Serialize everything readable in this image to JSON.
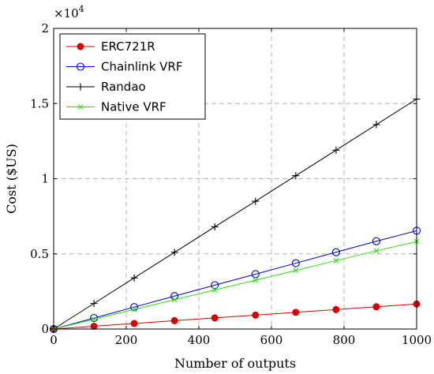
{
  "chart_data": {
    "type": "line",
    "xlabel": "Number of outputs",
    "ylabel": "Cost ($US)",
    "y_multiplier_label": "×10",
    "y_multiplier_exp": "4",
    "xlim": [
      0,
      1000
    ],
    "ylim": [
      0,
      20000
    ],
    "x_ticks": [
      0,
      200,
      400,
      600,
      800,
      1000
    ],
    "x_tick_labels": [
      "0",
      "200",
      "400",
      "600",
      "800",
      "1000"
    ],
    "y_ticks": [
      0,
      5000,
      10000,
      15000,
      20000
    ],
    "y_tick_labels": [
      "0",
      "0.5",
      "1",
      "1.5",
      "2"
    ],
    "grid": true,
    "legend_position": "top-left",
    "x": [
      0,
      111,
      222,
      333,
      444,
      556,
      667,
      778,
      889,
      1000
    ],
    "series": [
      {
        "name": "ERC721R",
        "color": "#d40000",
        "marker": "filled-circle",
        "values": [
          0,
          185,
          370,
          555,
          740,
          925,
          1110,
          1295,
          1480,
          1665
        ]
      },
      {
        "name": "Chainlink VRF",
        "color": "#0000cc",
        "marker": "open-circle",
        "values": [
          0,
          730,
          1460,
          2190,
          2920,
          3650,
          4380,
          5110,
          5840,
          6540
        ]
      },
      {
        "name": "Randao",
        "color": "#000000",
        "marker": "plus",
        "values": [
          0,
          1700,
          3400,
          5100,
          6800,
          8500,
          10200,
          11900,
          13600,
          15300
        ]
      },
      {
        "name": "Native VRF",
        "color": "#33dd11",
        "marker": "cross",
        "values": [
          0,
          650,
          1300,
          1950,
          2600,
          3250,
          3900,
          4550,
          5200,
          5820
        ]
      }
    ]
  }
}
